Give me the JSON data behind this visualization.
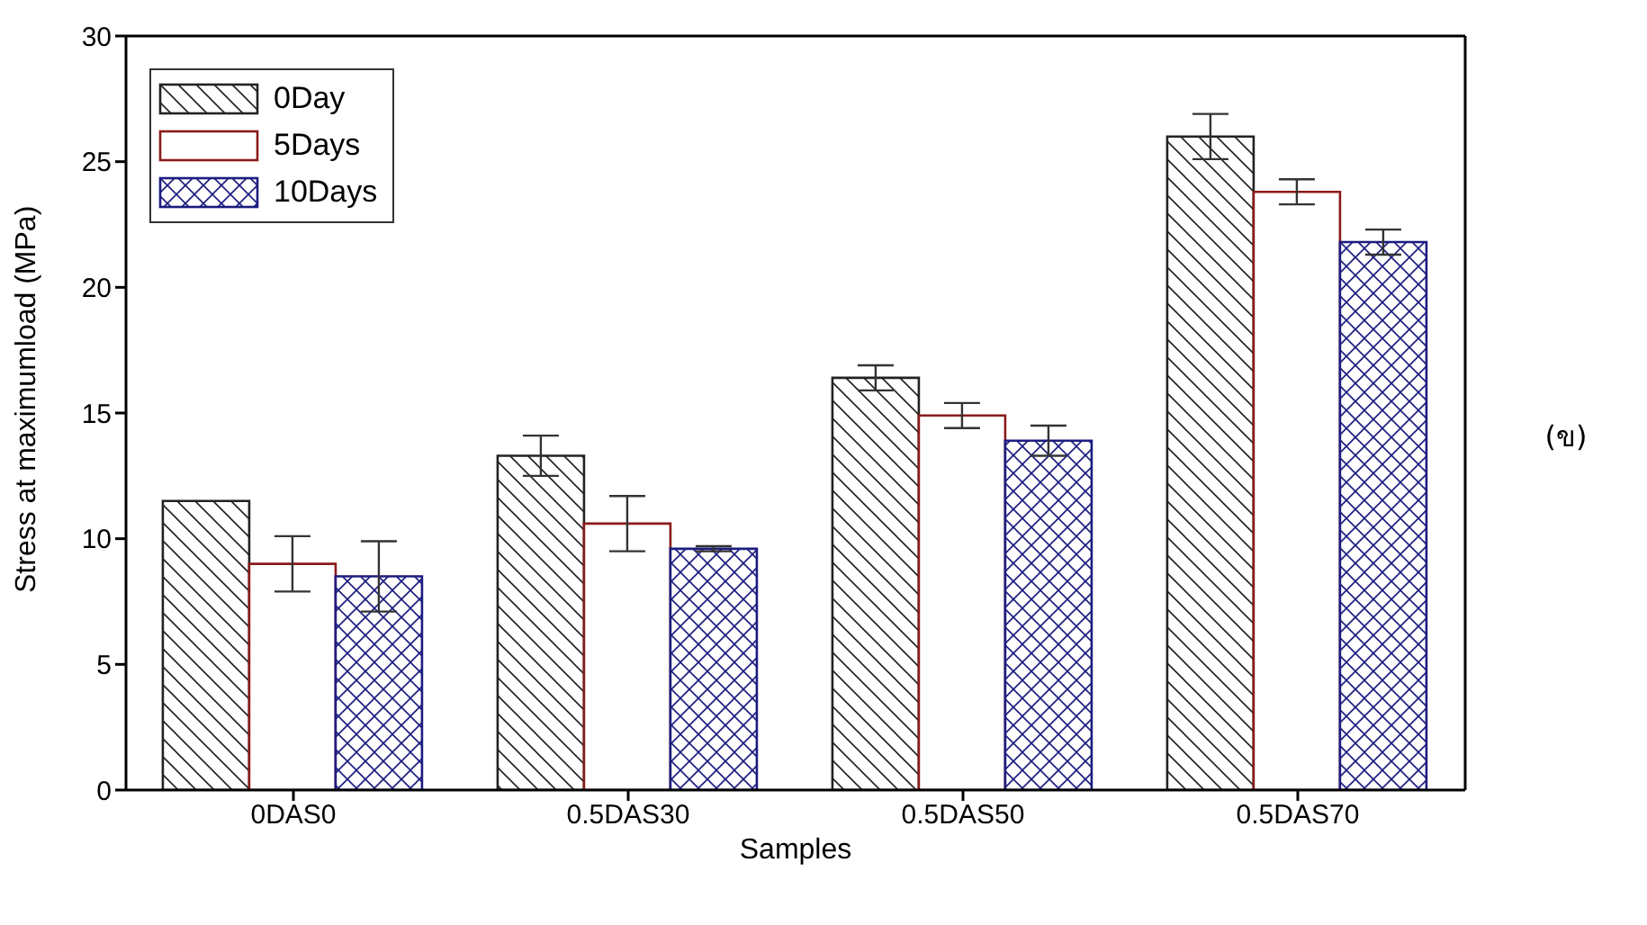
{
  "chart_data": {
    "type": "bar",
    "xlabel": "Samples",
    "ylabel": "Stress at maximumload (MPa)",
    "categories": [
      "0DAS0",
      "0.5DAS30",
      "0.5DAS50",
      "0.5DAS70"
    ],
    "series": [
      {
        "name": "0Day",
        "color": "#222222",
        "values": [
          11.5,
          13.3,
          16.4,
          26.0
        ],
        "errors": [
          null,
          0.8,
          0.5,
          0.9
        ]
      },
      {
        "name": "5Days",
        "color": "#8b1a1a",
        "values": [
          9.0,
          10.6,
          14.9,
          23.8
        ],
        "errors": [
          1.1,
          1.1,
          0.5,
          0.5
        ]
      },
      {
        "name": "10Days",
        "color": "#1c1c80",
        "values": [
          8.5,
          9.6,
          13.9,
          21.8
        ],
        "errors": [
          1.4,
          0.1,
          0.6,
          0.5
        ]
      }
    ],
    "ylim": [
      0,
      30
    ],
    "yticks": [
      0,
      5,
      10,
      15,
      20,
      25,
      30
    ],
    "grid": false,
    "legend": "top left",
    "annotations": [
      "(ข)"
    ]
  }
}
